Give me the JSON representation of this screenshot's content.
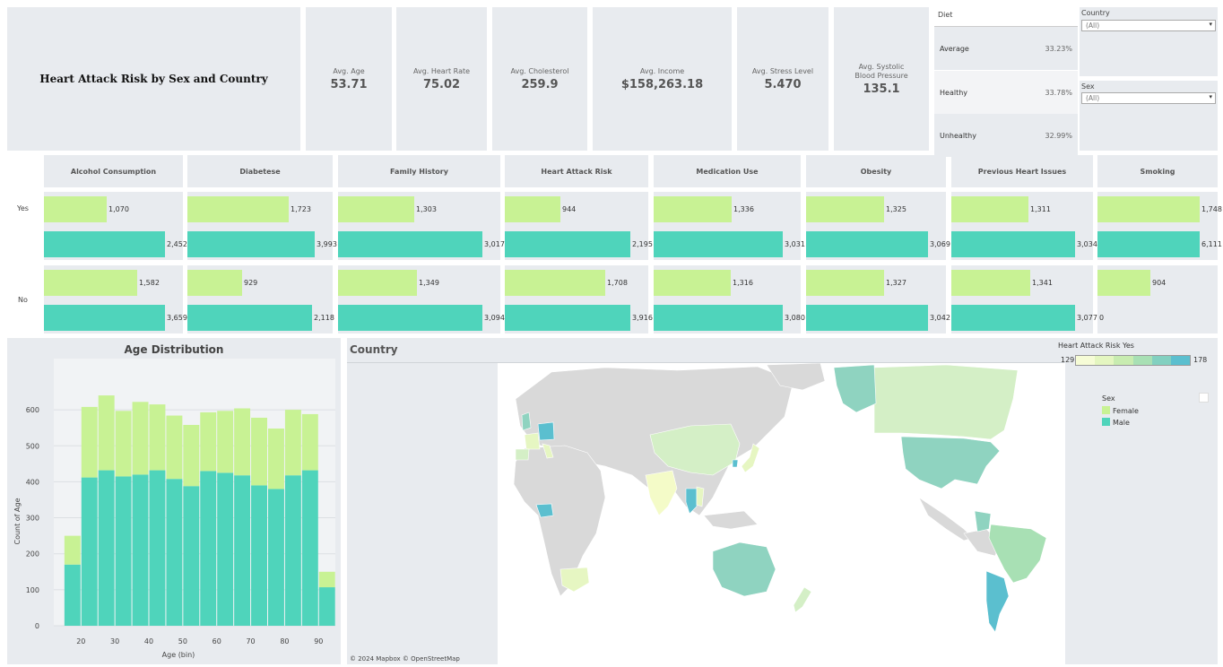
{
  "dashboard_title": "Heart Attack Risk by Sex and Country",
  "kpis": [
    {
      "label": "Avg. Age",
      "value": "53.71"
    },
    {
      "label": "Avg. Heart Rate",
      "value": "75.02"
    },
    {
      "label": "Avg. Cholesterol",
      "value": "259.9"
    },
    {
      "label": "Avg. Income",
      "value": "$158,263.18"
    },
    {
      "label": "Avg. Stress Level",
      "value": "5.470"
    },
    {
      "label": "Avg. Systolic Blood Pressure",
      "value": "135.1"
    }
  ],
  "diet": {
    "title": "Diet",
    "rows": [
      {
        "label": "Average",
        "pct": "33.23%"
      },
      {
        "label": "Healthy",
        "pct": "33.78%"
      },
      {
        "label": "Unhealthy",
        "pct": "32.99%"
      }
    ]
  },
  "filters": {
    "country": {
      "label": "Country",
      "value": "(All)"
    },
    "sex": {
      "label": "Sex",
      "value": "(All)"
    }
  },
  "matrix": {
    "row_labels": [
      "Yes",
      "No"
    ],
    "columns": [
      {
        "name": "Alcohol Consumption",
        "yes": {
          "f": "1,070",
          "m": "2,452"
        },
        "no": {
          "f": "1,582",
          "m": "3,659"
        }
      },
      {
        "name": "Diabetese",
        "yes": {
          "f": "1,723",
          "m": "3,993"
        },
        "no": {
          "f": "929",
          "m": "2,118"
        }
      },
      {
        "name": "Family History",
        "yes": {
          "f": "1,303",
          "m": "3,017"
        },
        "no": {
          "f": "1,349",
          "m": "3,094"
        }
      },
      {
        "name": "Heart Attack Risk",
        "yes": {
          "f": "944",
          "m": "2,195"
        },
        "no": {
          "f": "1,708",
          "m": "3,916"
        }
      },
      {
        "name": "Medication Use",
        "yes": {
          "f": "1,336",
          "m": "3,031"
        },
        "no": {
          "f": "1,316",
          "m": "3,080"
        }
      },
      {
        "name": "Obesity",
        "yes": {
          "f": "1,325",
          "m": "3,069"
        },
        "no": {
          "f": "1,327",
          "m": "3,042"
        }
      },
      {
        "name": "Previous Heart Issues",
        "yes": {
          "f": "1,311",
          "m": "3,034"
        },
        "no": {
          "f": "1,341",
          "m": "3,077"
        }
      },
      {
        "name": "Smoking",
        "yes": {
          "f": "1,748",
          "m": "6,111"
        },
        "no": {
          "f": "904",
          "m": "0"
        }
      }
    ]
  },
  "chart_data": {
    "type": "bar",
    "title": "Age Distribution",
    "xlabel": "Age (bin)",
    "ylabel": "Count of Age",
    "stacked": true,
    "x_bin_starts": [
      15,
      20,
      25,
      30,
      35,
      40,
      45,
      50,
      55,
      60,
      65,
      70,
      75,
      80,
      85,
      90
    ],
    "x_ticks": [
      20,
      30,
      40,
      50,
      60,
      70,
      80,
      90
    ],
    "y_ticks": [
      0,
      100,
      200,
      300,
      400,
      500,
      600
    ],
    "ylim": [
      0,
      680
    ],
    "series": [
      {
        "name": "Male",
        "color": "#4fd4bb",
        "values": [
          170,
          412,
          432,
          415,
          420,
          432,
          408,
          388,
          430,
          425,
          418,
          390,
          380,
          418,
          432,
          107
        ]
      },
      {
        "name": "Female",
        "color": "#c8f294",
        "values": [
          80,
          196,
          208,
          182,
          202,
          183,
          176,
          170,
          163,
          172,
          186,
          188,
          168,
          182,
          156,
          43
        ]
      }
    ]
  },
  "map": {
    "title": "Country",
    "attribution": "© 2024 Mapbox  © OpenStreetMap",
    "legend_title": "Heart Attack Risk Yes",
    "legend_min": "129",
    "legend_max": "178",
    "colors": {
      "low": "#f4fbc8",
      "high": "#5bbfcf",
      "none": "#d9d9d9"
    },
    "sex_legend_title": "Sex",
    "sex_legend": [
      {
        "label": "Female",
        "color": "#c8f294"
      },
      {
        "label": "Male",
        "color": "#4fd4bb"
      }
    ]
  }
}
